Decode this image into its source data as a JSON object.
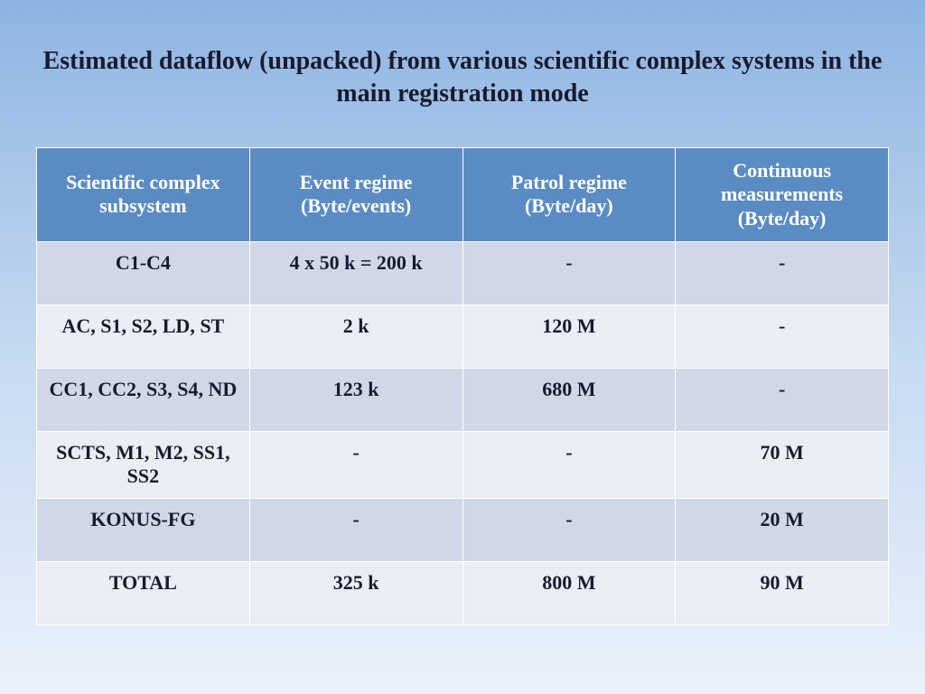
{
  "title": "Estimated dataflow (unpacked) from various scientific complex systems in the main registration mode",
  "table": {
    "columns": [
      "Scientific complex subsystem",
      "Event regime (Byte/events)",
      "Patrol regime (Byte/day)",
      "Continuous measurements (Byte/day)"
    ],
    "rows": [
      [
        "C1-C4",
        "4 x 50 k = 200 k",
        "-",
        "-"
      ],
      [
        "AC, S1, S2, LD, ST",
        "2 k",
        "120 M",
        "-"
      ],
      [
        "CC1, CC2, S3, S4, ND",
        "123 k",
        "680 M",
        "-"
      ],
      [
        "SCTS, M1, M2, SS1, SS2",
        "-",
        "-",
        "70 M"
      ],
      [
        "KONUS-FG",
        "-",
        "-",
        "20 M"
      ],
      [
        "TOTAL",
        "325 k",
        "800 M",
        "90 M"
      ]
    ],
    "header_bg": "#5b8bc3",
    "header_fg": "#ffffff",
    "row_even_bg": "#d0d8e8",
    "row_odd_bg": "#e9edf4",
    "cell_fontsize": 22,
    "header_fontsize": 22,
    "column_widths": [
      "25%",
      "25%",
      "25%",
      "25%"
    ]
  },
  "background_gradient": [
    "#8db4e2",
    "#c5d9f1",
    "#eaf1fb"
  ],
  "title_fontsize": 28,
  "title_color": "#1a1a2e"
}
